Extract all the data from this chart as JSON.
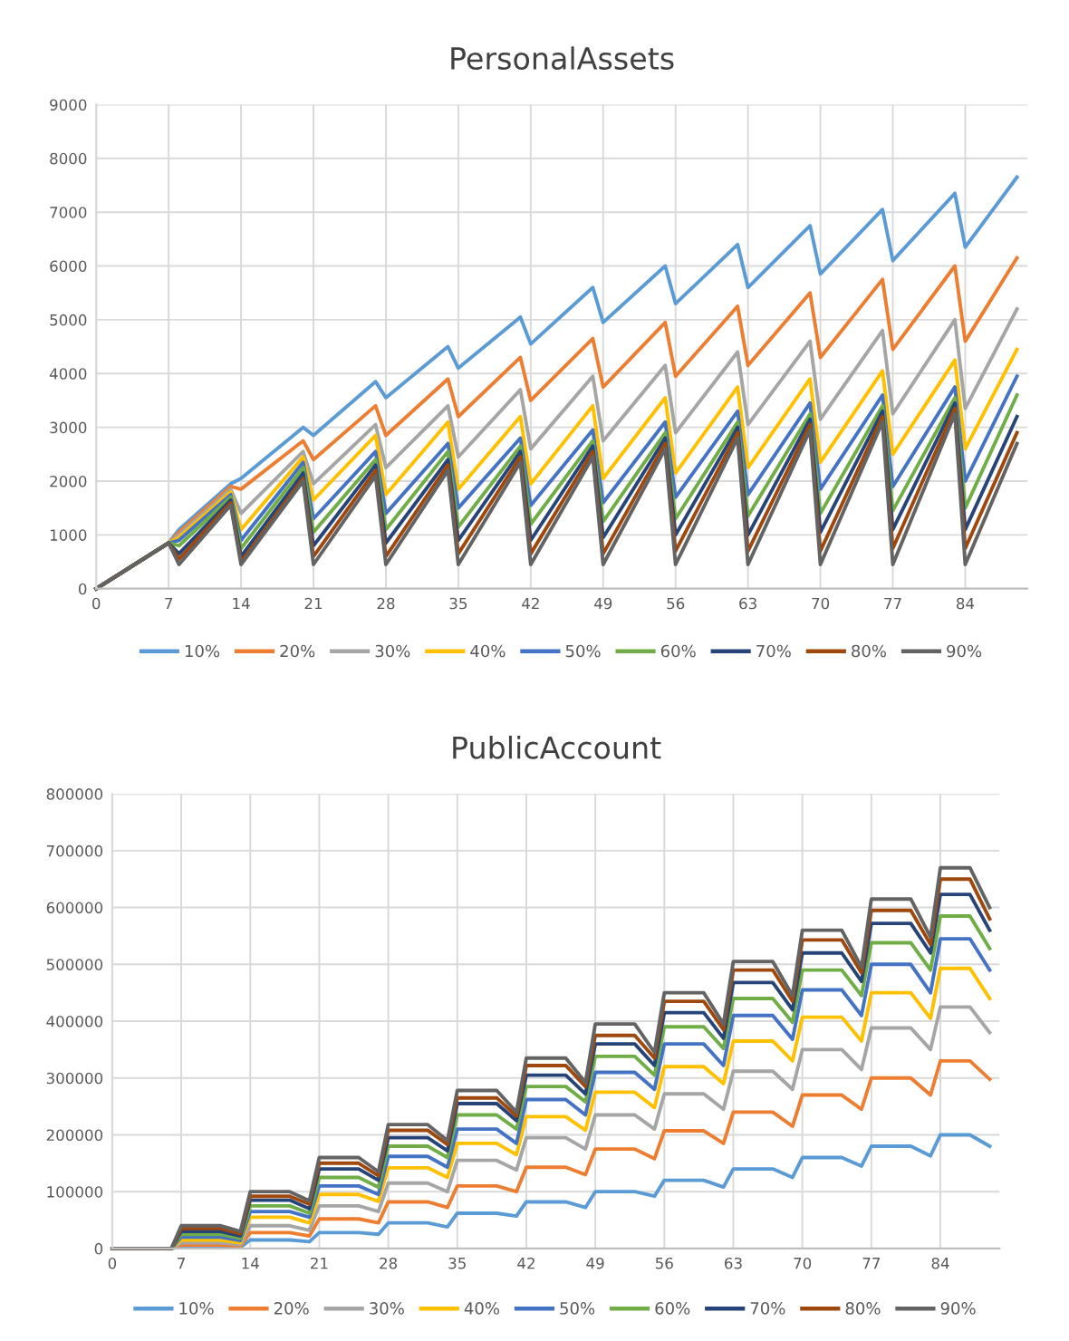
{
  "chart_data": [
    {
      "type": "line",
      "title": "PersonalAssets",
      "legend": "bottom",
      "grid": true,
      "marker": "none",
      "line_style": "solid",
      "xlim": [
        0,
        90
      ],
      "xticks": [
        0,
        7,
        14,
        21,
        28,
        35,
        42,
        49,
        56,
        63,
        70,
        77,
        84
      ],
      "ylim": [
        0,
        9000
      ],
      "yticks": [
        0,
        1000,
        2000,
        3000,
        4000,
        5000,
        6000,
        7000,
        8000,
        9000
      ],
      "x": [
        0,
        7,
        8,
        13,
        14,
        20,
        21,
        27,
        28,
        34,
        35,
        41,
        42,
        48,
        49,
        55,
        56,
        62,
        63,
        69,
        70,
        76,
        77,
        83,
        84,
        89
      ],
      "series": [
        {
          "name": "10%",
          "color": "#5b9bd5",
          "values": [
            0,
            850,
            1100,
            1950,
            2050,
            3000,
            2850,
            3850,
            3550,
            4500,
            4100,
            5050,
            4550,
            5600,
            4950,
            6000,
            5300,
            6400,
            5600,
            6750,
            5850,
            7050,
            6100,
            7350,
            6350,
            7650
          ]
        },
        {
          "name": "20%",
          "color": "#ed7d31",
          "values": [
            0,
            850,
            1050,
            1900,
            1850,
            2750,
            2400,
            3400,
            2850,
            3900,
            3200,
            4300,
            3500,
            4650,
            3750,
            4950,
            3950,
            5250,
            4150,
            5500,
            4300,
            5750,
            4450,
            6000,
            4600,
            6150
          ]
        },
        {
          "name": "30%",
          "color": "#a5a5a5",
          "values": [
            0,
            850,
            1000,
            1850,
            1400,
            2550,
            1950,
            3050,
            2250,
            3400,
            2450,
            3700,
            2600,
            3950,
            2750,
            4150,
            2900,
            4400,
            3050,
            4600,
            3150,
            4800,
            3250,
            5000,
            3350,
            5200
          ]
        },
        {
          "name": "40%",
          "color": "#ffc000",
          "values": [
            0,
            850,
            950,
            1800,
            1100,
            2450,
            1650,
            2850,
            1750,
            3100,
            1850,
            3200,
            1950,
            3400,
            2050,
            3550,
            2150,
            3750,
            2250,
            3900,
            2350,
            4050,
            2500,
            4250,
            2600,
            4450
          ]
        },
        {
          "name": "50%",
          "color": "#4472c4",
          "values": [
            0,
            850,
            900,
            1750,
            900,
            2350,
            1300,
            2550,
            1400,
            2700,
            1500,
            2800,
            1550,
            2950,
            1600,
            3100,
            1700,
            3300,
            1750,
            3450,
            1850,
            3600,
            1900,
            3750,
            2000,
            3950
          ]
        },
        {
          "name": "60%",
          "color": "#70ad47",
          "values": [
            0,
            850,
            800,
            1700,
            750,
            2250,
            1050,
            2400,
            1100,
            2550,
            1150,
            2650,
            1200,
            2750,
            1250,
            2900,
            1300,
            3100,
            1350,
            3250,
            1400,
            3400,
            1450,
            3550,
            1500,
            3600
          ]
        },
        {
          "name": "70%",
          "color": "#264478",
          "values": [
            0,
            850,
            650,
            1650,
            600,
            2150,
            800,
            2300,
            850,
            2400,
            900,
            2550,
            900,
            2650,
            950,
            2800,
            1000,
            3000,
            1000,
            3150,
            1050,
            3300,
            1100,
            3450,
            1100,
            3200
          ]
        },
        {
          "name": "80%",
          "color": "#9e480e",
          "values": [
            0,
            850,
            550,
            1600,
            500,
            2050,
            600,
            2200,
            600,
            2300,
            650,
            2450,
            650,
            2550,
            650,
            2700,
            700,
            2900,
            700,
            3050,
            700,
            3200,
            750,
            3350,
            750,
            2900
          ]
        },
        {
          "name": "90%",
          "color": "#636363",
          "values": [
            0,
            850,
            450,
            1550,
            450,
            2000,
            450,
            2100,
            450,
            2200,
            450,
            2350,
            450,
            2450,
            450,
            2600,
            450,
            2800,
            450,
            2950,
            450,
            3100,
            450,
            3250,
            450,
            2700
          ]
        }
      ]
    },
    {
      "type": "line",
      "title": "PublicAccount",
      "legend": "bottom",
      "grid": true,
      "marker": "none",
      "line_style": "solid",
      "xlim": [
        0,
        90
      ],
      "xticks": [
        0,
        7,
        14,
        21,
        28,
        35,
        42,
        49,
        56,
        63,
        70,
        77,
        84
      ],
      "ylim": [
        0,
        800000
      ],
      "yticks": [
        0,
        100000,
        200000,
        300000,
        400000,
        500000,
        600000,
        700000,
        800000
      ],
      "x": [
        0,
        6,
        7,
        11,
        13,
        14,
        18,
        20,
        21,
        25,
        27,
        28,
        32,
        34,
        35,
        39,
        41,
        42,
        46,
        48,
        49,
        53,
        55,
        56,
        60,
        62,
        63,
        67,
        69,
        70,
        74,
        76,
        77,
        81,
        83,
        84,
        87,
        89
      ],
      "series": [
        {
          "name": "10%",
          "color": "#5b9bd5",
          "values": [
            0,
            0,
            3000,
            3000,
            2000,
            15000,
            15000,
            12000,
            28000,
            28000,
            25000,
            45000,
            45000,
            38000,
            62000,
            62000,
            57000,
            82000,
            82000,
            72000,
            100000,
            100000,
            92000,
            120000,
            120000,
            108000,
            140000,
            140000,
            125000,
            160000,
            160000,
            145000,
            180000,
            180000,
            163000,
            200000,
            200000,
            180000
          ]
        },
        {
          "name": "20%",
          "color": "#ed7d31",
          "values": [
            0,
            0,
            6000,
            6000,
            4000,
            28000,
            28000,
            22000,
            52000,
            52000,
            45000,
            82000,
            82000,
            72000,
            110000,
            110000,
            100000,
            143000,
            143000,
            130000,
            175000,
            175000,
            158000,
            207000,
            207000,
            185000,
            240000,
            240000,
            215000,
            270000,
            270000,
            245000,
            300000,
            300000,
            270000,
            330000,
            330000,
            298000
          ]
        },
        {
          "name": "30%",
          "color": "#a5a5a5",
          "values": [
            0,
            0,
            10000,
            10000,
            7000,
            40000,
            40000,
            32000,
            75000,
            75000,
            65000,
            115000,
            115000,
            100000,
            155000,
            155000,
            138000,
            195000,
            195000,
            175000,
            235000,
            235000,
            210000,
            272000,
            272000,
            245000,
            312000,
            312000,
            280000,
            350000,
            350000,
            315000,
            388000,
            388000,
            350000,
            425000,
            425000,
            380000
          ]
        },
        {
          "name": "40%",
          "color": "#ffc000",
          "values": [
            0,
            0,
            15000,
            15000,
            10000,
            55000,
            55000,
            45000,
            95000,
            95000,
            83000,
            142000,
            142000,
            125000,
            185000,
            185000,
            165000,
            232000,
            232000,
            208000,
            275000,
            275000,
            248000,
            320000,
            320000,
            290000,
            365000,
            365000,
            330000,
            407000,
            407000,
            365000,
            450000,
            450000,
            405000,
            493000,
            493000,
            440000
          ]
        },
        {
          "name": "50%",
          "color": "#4472c4",
          "values": [
            0,
            0,
            20000,
            20000,
            14000,
            65000,
            65000,
            55000,
            110000,
            110000,
            95000,
            162000,
            162000,
            143000,
            210000,
            210000,
            185000,
            262000,
            262000,
            235000,
            310000,
            310000,
            280000,
            360000,
            360000,
            322000,
            410000,
            410000,
            368000,
            455000,
            455000,
            410000,
            500000,
            500000,
            450000,
            545000,
            545000,
            490000
          ]
        },
        {
          "name": "60%",
          "color": "#70ad47",
          "values": [
            0,
            0,
            25000,
            25000,
            18000,
            75000,
            75000,
            62000,
            125000,
            125000,
            108000,
            180000,
            180000,
            160000,
            235000,
            235000,
            210000,
            285000,
            285000,
            258000,
            338000,
            338000,
            305000,
            390000,
            390000,
            352000,
            440000,
            440000,
            398000,
            490000,
            490000,
            445000,
            538000,
            538000,
            490000,
            585000,
            585000,
            528000
          ]
        },
        {
          "name": "70%",
          "color": "#264478",
          "values": [
            0,
            0,
            30000,
            30000,
            22000,
            85000,
            85000,
            70000,
            140000,
            140000,
            120000,
            195000,
            195000,
            172000,
            255000,
            255000,
            225000,
            305000,
            305000,
            272000,
            360000,
            360000,
            322000,
            415000,
            415000,
            370000,
            468000,
            468000,
            420000,
            520000,
            520000,
            470000,
            572000,
            572000,
            520000,
            623000,
            623000,
            560000
          ]
        },
        {
          "name": "80%",
          "color": "#9e480e",
          "values": [
            0,
            0,
            35000,
            35000,
            26000,
            92000,
            92000,
            78000,
            150000,
            150000,
            128000,
            208000,
            208000,
            183000,
            265000,
            265000,
            233000,
            322000,
            322000,
            285000,
            375000,
            375000,
            335000,
            435000,
            435000,
            385000,
            490000,
            490000,
            435000,
            543000,
            543000,
            485000,
            595000,
            595000,
            535000,
            650000,
            650000,
            580000
          ]
        },
        {
          "name": "90%",
          "color": "#636363",
          "values": [
            0,
            0,
            40000,
            40000,
            30000,
            100000,
            100000,
            84000,
            160000,
            160000,
            135000,
            218000,
            218000,
            190000,
            278000,
            278000,
            240000,
            335000,
            335000,
            292000,
            395000,
            395000,
            345000,
            450000,
            450000,
            395000,
            505000,
            505000,
            445000,
            560000,
            560000,
            495000,
            615000,
            615000,
            548000,
            670000,
            670000,
            600000
          ]
        }
      ]
    }
  ]
}
